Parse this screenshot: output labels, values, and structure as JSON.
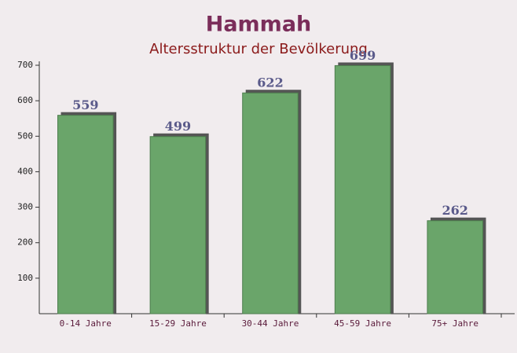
{
  "chart_data": {
    "type": "bar",
    "title": "Hammah",
    "subtitle": "Altersstruktur der Bevölkerung",
    "categories": [
      "0-14 Jahre",
      "15-29 Jahre",
      "30-44 Jahre",
      "45-59 Jahre",
      "75+ Jahre"
    ],
    "values": [
      559,
      499,
      622,
      699,
      262
    ],
    "color": "#6aa56a",
    "ylim": [
      0,
      700
    ],
    "yticks": [
      100,
      200,
      300,
      400,
      500,
      600,
      700
    ],
    "grid": false
  }
}
